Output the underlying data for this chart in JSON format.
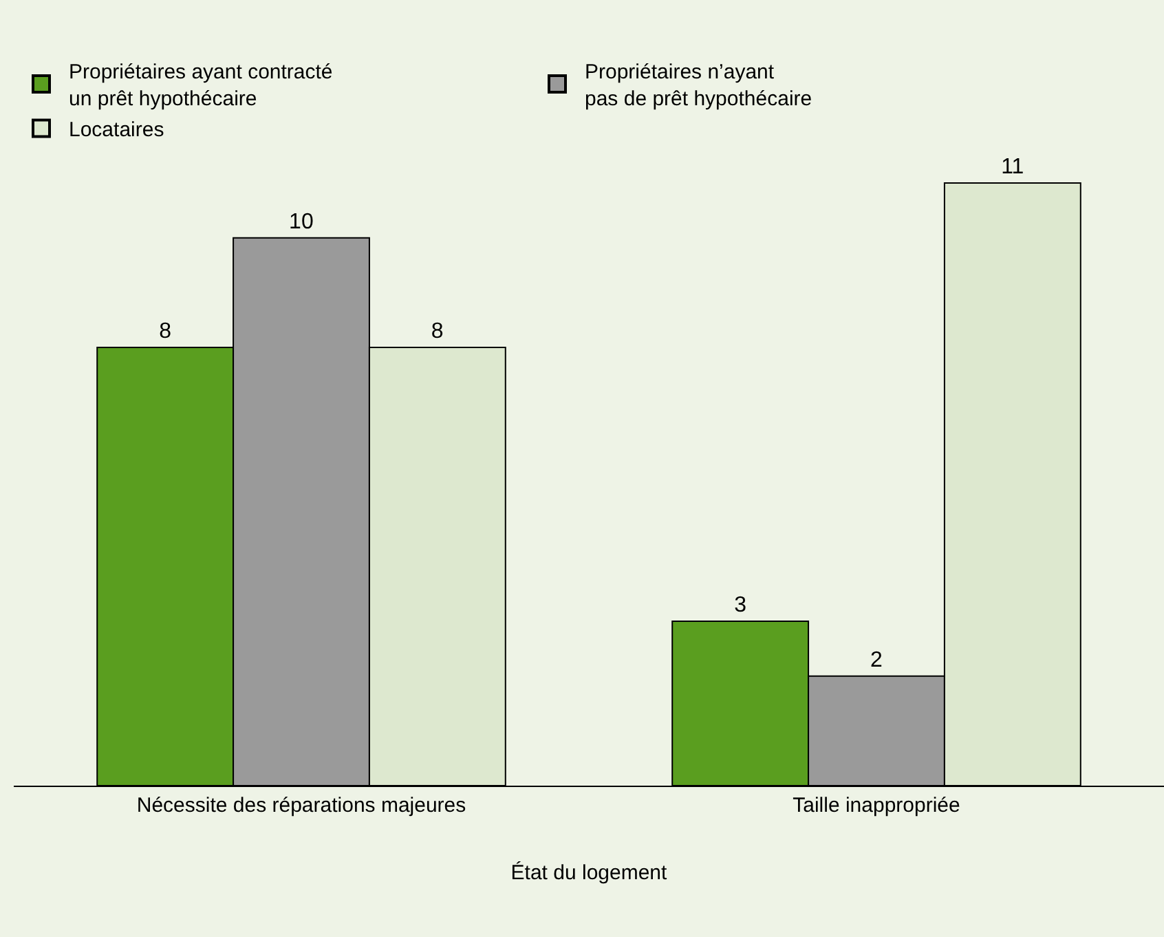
{
  "chart_data": {
    "type": "bar",
    "xlabel": "État du logement",
    "categories": [
      "Nécessite des réparations majeures",
      "Taille inappropriée"
    ],
    "series": [
      {
        "name": "Propriétaires ayant contracté\nun prêt hypothécaire",
        "color": "#5a9e1f",
        "values": [
          8,
          3
        ]
      },
      {
        "name": "Propriétaires n’ayant\npas de prêt hypothécaire",
        "color": "#9a9a9a",
        "values": [
          10,
          2
        ]
      },
      {
        "name": "Locataires",
        "color": "#dde8cf",
        "values": [
          8,
          11
        ]
      }
    ],
    "data_labels": true,
    "legend": "top",
    "grid": false
  }
}
